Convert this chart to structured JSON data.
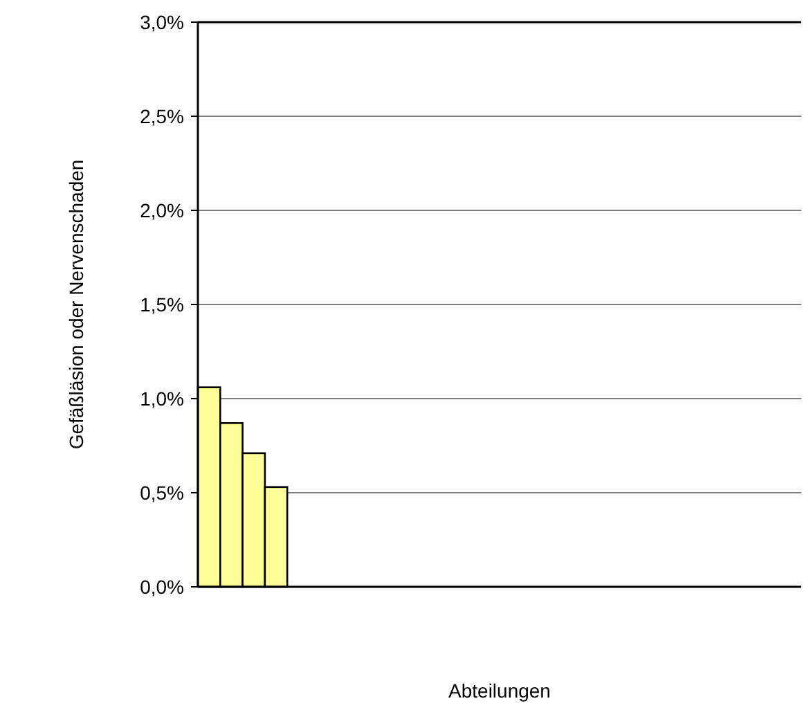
{
  "chart_data": {
    "type": "bar",
    "xlabel": "Abteilungen",
    "ylabel": "Gefäßläsion oder Nervenschaden",
    "categories": [
      null,
      null,
      null,
      null,
      null,
      null,
      null,
      null,
      null,
      null,
      null,
      null,
      null,
      null,
      null,
      null,
      null,
      null,
      null,
      null,
      null,
      null,
      null,
      null,
      null,
      null,
      null
    ],
    "values": [
      1.06,
      0.87,
      0.71,
      0.53,
      null,
      null,
      null,
      null,
      null,
      null,
      null,
      null,
      null,
      null,
      null,
      null,
      null,
      null,
      null,
      null,
      null,
      null,
      null,
      null,
      null,
      null,
      null
    ],
    "color": "#ffff99",
    "ylim": [
      0,
      3
    ],
    "yticks": [
      {
        "value": 0,
        "label": "0,0%"
      },
      {
        "value": 0.5,
        "label": "0,5%"
      },
      {
        "value": 1,
        "label": "1,0%"
      },
      {
        "value": 1.5,
        "label": "1,5%"
      },
      {
        "value": 2,
        "label": "2,0%"
      },
      {
        "value": 2.5,
        "label": "2,5%"
      },
      {
        "value": 3,
        "label": "3,0%"
      }
    ],
    "grid": "y"
  }
}
